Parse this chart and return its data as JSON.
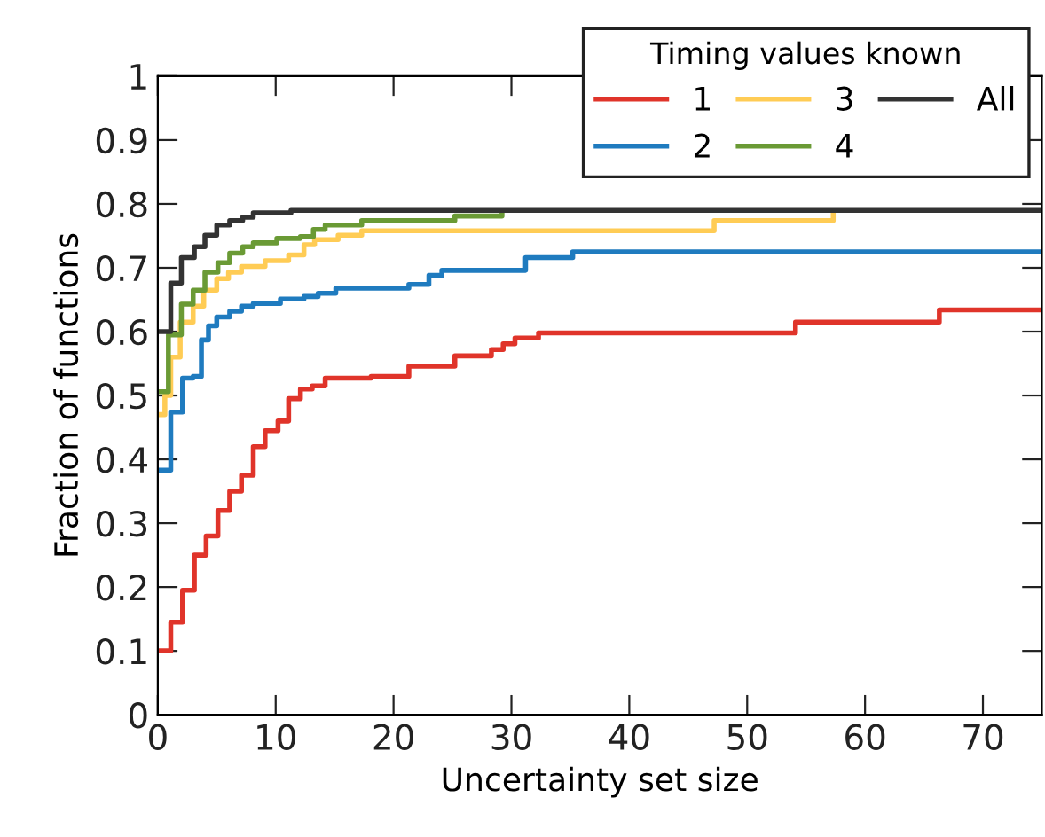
{
  "chart_data": {
    "type": "step",
    "xlabel": "Uncertainty set size",
    "ylabel": "Fraction of functions",
    "legend_title": "Timing values known",
    "legend": "top right",
    "grid": false,
    "xlim": [
      0,
      75
    ],
    "ylim": [
      0,
      1
    ],
    "xticks": [
      0,
      10,
      20,
      30,
      40,
      50,
      60,
      70
    ],
    "yticks": [
      0,
      {
        "value": 0.1,
        "label": "0.1"
      },
      {
        "value": 0.2,
        "label": "0.2"
      },
      {
        "value": 0.3,
        "label": "0.3"
      },
      {
        "value": 0.4,
        "label": "0.4"
      },
      {
        "value": 0.5,
        "label": "0.5"
      },
      {
        "value": 0.6,
        "label": "0.6"
      },
      {
        "value": 0.7,
        "label": "0.7"
      },
      {
        "value": 0.8,
        "label": "0.8"
      },
      {
        "value": 0.9,
        "label": "0.9"
      },
      1
    ],
    "series": [
      {
        "name": "1",
        "color": "#e0342a",
        "x": [
          0,
          1.1,
          2.1,
          3.1,
          4.1,
          5.1,
          6.1,
          7.1,
          8.1,
          9.1,
          10.2,
          11.1,
          12.1,
          13.1,
          14.2,
          18.1,
          21.3,
          25.2,
          28.3,
          29.3,
          30.3,
          32.3,
          54.1,
          66.3,
          75
        ],
        "values": [
          0.1,
          0.145,
          0.195,
          0.25,
          0.28,
          0.32,
          0.35,
          0.375,
          0.42,
          0.445,
          0.46,
          0.495,
          0.51,
          0.515,
          0.527,
          0.53,
          0.546,
          0.562,
          0.572,
          0.581,
          0.59,
          0.598,
          0.615,
          0.634,
          0.634
        ]
      },
      {
        "name": "2",
        "color": "#1f7bbf",
        "x": [
          0,
          1.1,
          2.1,
          3.0,
          3.7,
          4.3,
          5.0,
          6.1,
          7.1,
          8.1,
          10.4,
          12.4,
          13.6,
          15.1,
          21.3,
          23.0,
          24.1,
          31.2,
          35.2,
          75
        ],
        "values": [
          0.383,
          0.474,
          0.527,
          0.53,
          0.587,
          0.609,
          0.623,
          0.632,
          0.64,
          0.644,
          0.651,
          0.655,
          0.66,
          0.668,
          0.674,
          0.688,
          0.696,
          0.716,
          0.725,
          0.725
        ]
      },
      {
        "name": "3",
        "color": "#ffcc55",
        "x": [
          0,
          0.6,
          1.1,
          1.9,
          3.0,
          3.9,
          5.0,
          6.0,
          7.1,
          9.1,
          11.1,
          12.4,
          13.3,
          15.3,
          17.3,
          47.2,
          57.3
        ],
        "values": [
          0.47,
          0.5,
          0.56,
          0.615,
          0.64,
          0.665,
          0.683,
          0.693,
          0.702,
          0.711,
          0.72,
          0.736,
          0.744,
          0.751,
          0.758,
          0.774,
          0.786
        ]
      },
      {
        "name": "4",
        "color": "#6a9a35",
        "x": [
          0,
          0.9,
          2.0,
          3.0,
          4.0,
          5.1,
          6.1,
          7.2,
          8.1,
          10.1,
          12.1,
          13.2,
          14.2,
          17.3,
          25.2,
          29.2
        ],
        "values": [
          0.506,
          0.595,
          0.643,
          0.665,
          0.693,
          0.708,
          0.723,
          0.733,
          0.739,
          0.746,
          0.749,
          0.76,
          0.767,
          0.774,
          0.781,
          0.786
        ]
      },
      {
        "name": "All",
        "color": "#333333",
        "x": [
          0,
          1.1,
          2.0,
          3.1,
          4.0,
          5.0,
          6.1,
          7.2,
          8.1,
          11.3,
          75
        ],
        "values": [
          0.6,
          0.676,
          0.716,
          0.733,
          0.751,
          0.767,
          0.774,
          0.779,
          0.786,
          0.79,
          0.79
        ]
      }
    ]
  }
}
